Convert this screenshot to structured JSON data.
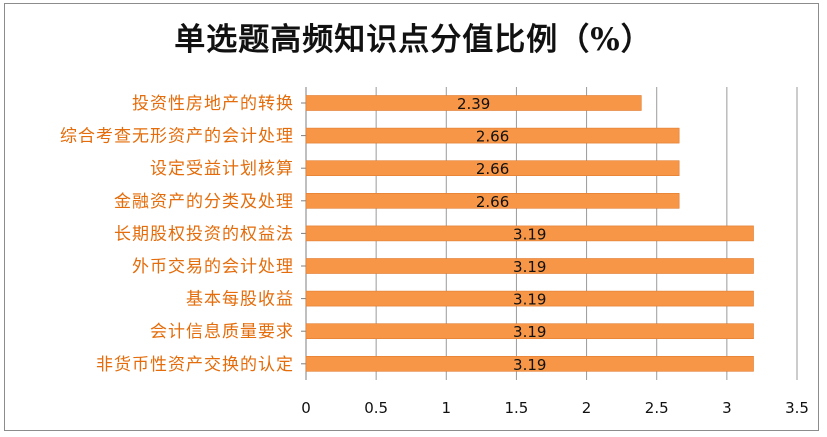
{
  "chart_data": {
    "type": "bar",
    "orientation": "horizontal",
    "title": "单选题高频知识点分值比例（%）",
    "categories": [
      "投资性房地产的转换",
      "综合考查无形资产的会计处理",
      "设定受益计划核算",
      "金融资产的分类及处理",
      "长期股权投资的权益法",
      "外币交易的会计处理",
      "基本每股收益",
      "会计信息质量要求",
      "非货币性资产交换的认定"
    ],
    "values": [
      2.39,
      2.66,
      2.66,
      2.66,
      3.19,
      3.19,
      3.19,
      3.19,
      3.19
    ],
    "data_labels": [
      "2.39",
      "2.66",
      "2.66",
      "2.66",
      "3.19",
      "3.19",
      "3.19",
      "3.19",
      "3.19"
    ],
    "xlim": [
      0,
      3.5
    ],
    "x_ticks": [
      "0",
      "0.5",
      "1",
      "1.5",
      "2",
      "2.5",
      "3",
      "3.5"
    ],
    "xlabel": "",
    "ylabel": "",
    "grid": "vertical",
    "legend": "none",
    "colors": {
      "bar": "#f79646",
      "bar_edge": "#e07b2e",
      "category_text": "#e46c0a",
      "grid": "#9a9a9a",
      "axis": "#7f7f7f",
      "title": "#111111"
    }
  }
}
